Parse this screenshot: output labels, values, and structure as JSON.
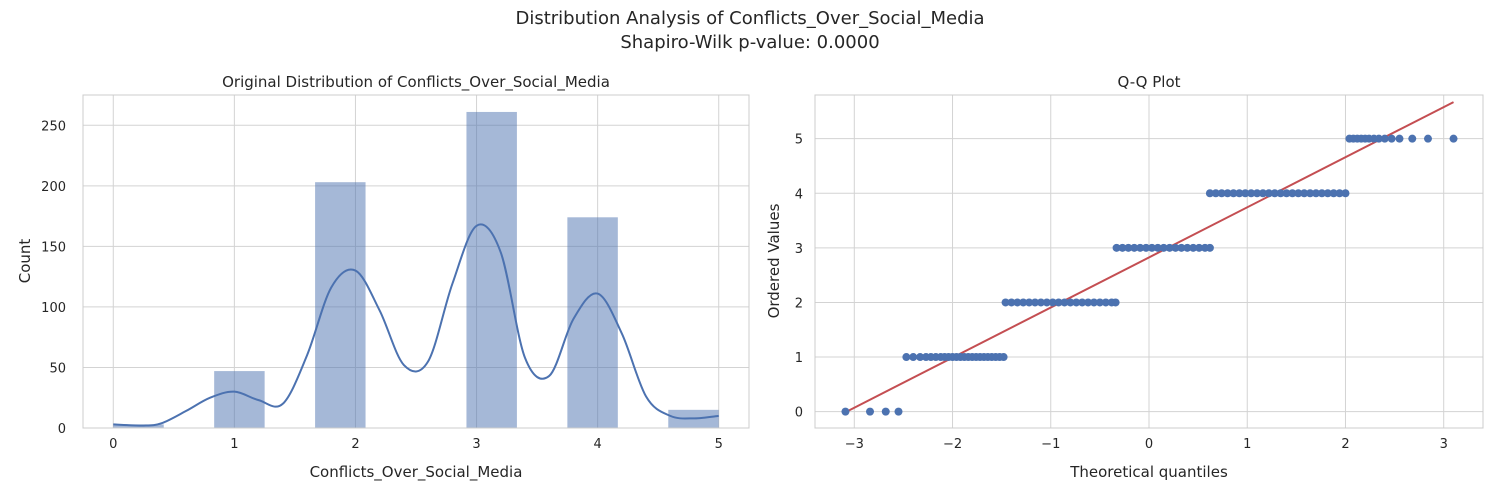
{
  "figure": {
    "suptitle_line1": "Distribution Analysis of Conflicts_Over_Social_Media",
    "suptitle_line2": "Shapiro-Wilk p-value: 0.0000"
  },
  "colors": {
    "bar": "#4c72b0",
    "kde": "#4c72b0",
    "points": "#4c72b0",
    "fit_line": "#c44e52"
  },
  "chart_data": [
    {
      "type": "bar",
      "title": "Original Distribution of Conflicts_Over_Social_Media",
      "xlabel": "Conflicts_Over_Social_Media",
      "ylabel": "Count",
      "xlim": [
        -0.25,
        5.25
      ],
      "ylim": [
        0,
        275
      ],
      "xticks": [
        0,
        1,
        2,
        3,
        4,
        5
      ],
      "yticks": [
        0,
        50,
        100,
        150,
        200,
        250
      ],
      "grid": true,
      "bins": [
        {
          "x0": 0.0,
          "x1": 0.4167,
          "count": 3
        },
        {
          "x0": 0.8333,
          "x1": 1.25,
          "count": 47
        },
        {
          "x0": 1.6667,
          "x1": 2.0833,
          "count": 203
        },
        {
          "x0": 2.9167,
          "x1": 3.3333,
          "count": 261
        },
        {
          "x0": 3.75,
          "x1": 4.1667,
          "count": 174
        },
        {
          "x0": 4.5833,
          "x1": 5.0,
          "count": 15
        }
      ],
      "kde": {
        "x": [
          0,
          0.25,
          0.4,
          0.6,
          0.8,
          1.0,
          1.2,
          1.4,
          1.6,
          1.8,
          2.0,
          2.2,
          2.4,
          2.6,
          2.8,
          3.0,
          3.2,
          3.4,
          3.6,
          3.8,
          4.0,
          4.2,
          4.4,
          4.6,
          4.8,
          5.0
        ],
        "y": [
          3,
          2,
          4,
          14,
          25,
          30,
          23,
          20,
          60,
          116,
          130,
          97,
          52,
          55,
          119,
          167,
          145,
          58,
          43,
          90,
          111,
          78,
          26,
          10,
          8,
          10
        ]
      }
    },
    {
      "type": "scatter",
      "title": "Q-Q Plot",
      "xlabel": "Theoretical quantiles",
      "ylabel": "Ordered Values",
      "xlim": [
        -3.4,
        3.4
      ],
      "ylim": [
        -0.3,
        5.8
      ],
      "xticks": [
        -3,
        -2,
        -1,
        0,
        1,
        2,
        3
      ],
      "xtick_labels": [
        "−3",
        "−2",
        "−1",
        "0",
        "1",
        "2",
        "3"
      ],
      "yticks": [
        0,
        1,
        2,
        3,
        4,
        5
      ],
      "grid": true,
      "points": [
        {
          "y": 0,
          "x": [
            -3.09,
            -2.84,
            -2.68,
            -2.55
          ]
        },
        {
          "y": 1,
          "x": [
            -2.47,
            -2.4,
            -2.33,
            -2.27,
            -2.22,
            -2.17,
            -2.12,
            -2.08,
            -2.04,
            -2.0,
            -1.96,
            -1.92,
            -1.88,
            -1.84,
            -1.8,
            -1.76,
            -1.72,
            -1.68,
            -1.64,
            -1.6,
            -1.56,
            -1.52,
            -1.48
          ]
        },
        {
          "y": 2,
          "x": [
            -1.46,
            -1.4,
            -1.34,
            -1.28,
            -1.22,
            -1.16,
            -1.1,
            -1.04,
            -0.98,
            -0.92,
            -0.86,
            -0.8,
            -0.74,
            -0.68,
            -0.62,
            -0.56,
            -0.5,
            -0.44,
            -0.38,
            -0.34
          ]
        },
        {
          "y": 3,
          "x": [
            -0.33,
            -0.27,
            -0.21,
            -0.15,
            -0.09,
            -0.03,
            0.03,
            0.09,
            0.15,
            0.21,
            0.27,
            0.33,
            0.39,
            0.45,
            0.51,
            0.57,
            0.62
          ]
        },
        {
          "y": 4,
          "x": [
            0.62,
            0.68,
            0.74,
            0.8,
            0.86,
            0.92,
            0.98,
            1.04,
            1.1,
            1.16,
            1.22,
            1.28,
            1.34,
            1.4,
            1.46,
            1.52,
            1.58,
            1.64,
            1.7,
            1.76,
            1.82,
            1.88,
            1.94,
            2.0
          ]
        },
        {
          "y": 5,
          "x": [
            2.04,
            2.08,
            2.12,
            2.16,
            2.2,
            2.24,
            2.29,
            2.34,
            2.4,
            2.47,
            2.55,
            2.68,
            2.84,
            3.1
          ]
        }
      ],
      "fit_line": {
        "x": [
          -3.1,
          3.1
        ],
        "y": [
          -0.02,
          5.67
        ]
      }
    }
  ]
}
